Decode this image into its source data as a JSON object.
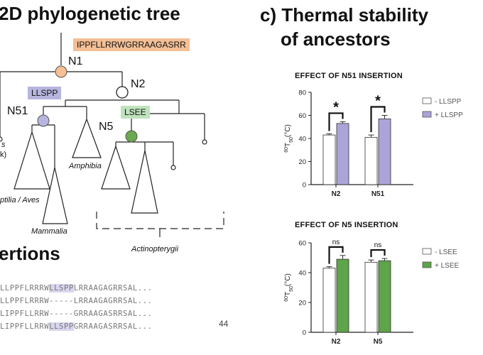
{
  "panel_b": {
    "title": "2D phylogenetic tree",
    "nodes": {
      "n1": "N1",
      "n2": "N2",
      "n51": "N51",
      "n5": "N5"
    },
    "tags": {
      "main_insertion": "IPPFLLRRWGRRAAGASRR",
      "llspp": "LLSPP",
      "lsee": "LSEE"
    },
    "colors": {
      "n1_fill": "#f6bf95",
      "main_tag_bg": "#f4bf95",
      "llspp_bg": "#b7b4de",
      "lsee_bg": "#bfe3bd",
      "n51_fill": "#b8b5de",
      "n5_fill": "#6aa94d"
    },
    "taxa": {
      "cut_left": "s",
      "cut_left_2": "k)",
      "reptilia": "ptilia / Aves",
      "mammalia": "Mammalia",
      "amphibia": "Amphibia",
      "actinopterygii": "Actinopterygii"
    }
  },
  "insertions": {
    "title": "ertions",
    "sequences": [
      {
        "pre": "LLPPFLRRRW",
        "hl": "LLSPP",
        "post": "LRRAAGAGRRSAL..."
      },
      {
        "pre": "LLPPFLRRRW",
        "hl": "-----",
        "post": "LRRAAGAGRRSAL..."
      },
      {
        "pre": "LIPPFLLRRW",
        "hl": "-----",
        "post": "GRRAAGASRRSAL..."
      },
      {
        "pre": "LIPPFLLRRW",
        "hl": "LLSPP",
        "post": "GRRAAGASRRSAL..."
      }
    ],
    "page_number": "44"
  },
  "panel_c": {
    "title_line1": "c) Thermal stability",
    "title_line2": "of ancestors"
  },
  "chart_data": [
    {
      "type": "bar",
      "title": "EFFECT OF N51 INSERTION",
      "categories": [
        "N2",
        "N51"
      ],
      "series": [
        {
          "name": "- LLSPP",
          "values": [
            43,
            41
          ],
          "errors": [
            1,
            2
          ],
          "color": "#ffffff"
        },
        {
          "name": "+ LLSPP",
          "values": [
            53,
            57
          ],
          "errors": [
            1.5,
            3
          ],
          "color": "#aaa4d8"
        }
      ],
      "ylim": [
        0,
        80
      ],
      "yticks": [
        0,
        20,
        40,
        60,
        80
      ],
      "ylabel_sup": "60",
      "ylabel_main": "T",
      "ylabel_sub": "50",
      "ylabel_unit": "(°C)",
      "significance": [
        "*",
        "*"
      ],
      "legend_position": "right"
    },
    {
      "type": "bar",
      "title": "EFFECT OF N5 INSERTION",
      "categories": [
        "N2",
        "N5"
      ],
      "series": [
        {
          "name": "- LSEE",
          "values": [
            43,
            47
          ],
          "errors": [
            1,
            1.5
          ],
          "color": "#ffffff"
        },
        {
          "name": "+ LSEE",
          "values": [
            49,
            48
          ],
          "errors": [
            2.5,
            1.5
          ],
          "color": "#5ea448"
        }
      ],
      "ylim": [
        0,
        60
      ],
      "yticks": [
        0,
        20,
        40,
        60
      ],
      "ylabel_sup": "60",
      "ylabel_main": "T",
      "ylabel_sub": "50",
      "ylabel_unit": "(°C)",
      "significance": [
        "ns",
        "ns"
      ],
      "legend_position": "right"
    }
  ]
}
